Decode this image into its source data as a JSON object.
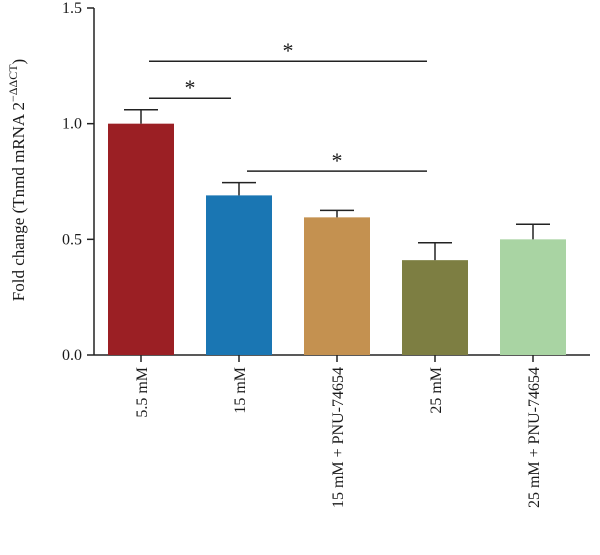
{
  "chart_data": {
    "type": "bar",
    "title": "",
    "xlabel": "",
    "ylabel": "Fold change (Tnmd mRNA 2",
    "ylabel_superscript": "−ΔΔCT",
    "ylabel_close": ")",
    "ylim": [
      0,
      1.5
    ],
    "yticks": [
      "0.0",
      "0.5",
      "1.0",
      "1.5"
    ],
    "ytick_values": [
      0,
      0.5,
      1.0,
      1.5
    ],
    "grid": false,
    "categories": [
      "5.5 mM",
      "15 mM",
      "15 mM + PNU-74654",
      "25 mM",
      "25 mM + PNU-74654"
    ],
    "values": [
      1.0,
      0.69,
      0.595,
      0.41,
      0.5
    ],
    "error_upper": [
      0.06,
      0.055,
      0.03,
      0.075,
      0.065
    ],
    "colors": [
      "#9b1f24",
      "#1a76b3",
      "#c49150",
      "#7d7e42",
      "#a9d4a3"
    ],
    "significance": [
      {
        "from": 0,
        "to": 1,
        "y": 1.11,
        "label": "*"
      },
      {
        "from": 0,
        "to": 3,
        "y": 1.27,
        "label": "*"
      },
      {
        "from": 1,
        "to": 3,
        "y": 0.795,
        "label": "*"
      }
    ]
  }
}
